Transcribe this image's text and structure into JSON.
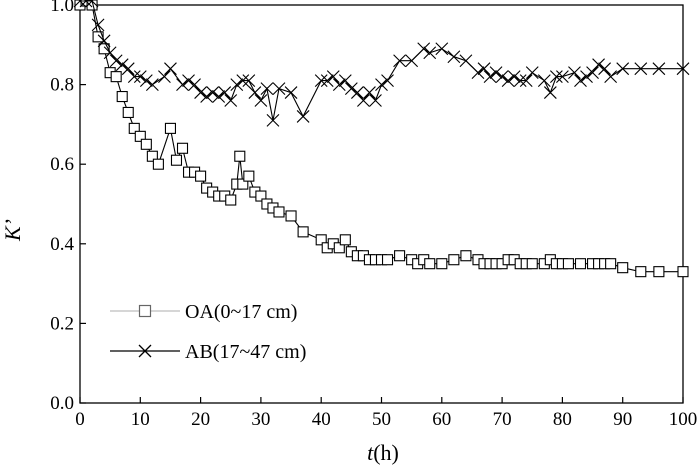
{
  "chart_data": {
    "type": "line",
    "xlabel": "t(h)",
    "ylabel": "K’",
    "xlim": [
      0,
      100
    ],
    "ylim": [
      0,
      1.0
    ],
    "xticks": [
      "0",
      "10",
      "20",
      "30",
      "40",
      "50",
      "60",
      "70",
      "80",
      "90",
      "100"
    ],
    "yticks": [
      "0.0",
      "0.2",
      "0.4",
      "0.6",
      "0.8",
      "1.0"
    ],
    "legend_position": "lower-left",
    "series": [
      {
        "name": "OA(0~17 cm)",
        "marker": "square",
        "color": "#000000",
        "legend_line_color": "#bdbdbd",
        "x": [
          0,
          1,
          2,
          3,
          4,
          5,
          6,
          7,
          8,
          9,
          10,
          11,
          12,
          13,
          15,
          16,
          17,
          18,
          19,
          20,
          21,
          22,
          23,
          24,
          25,
          26,
          26.5,
          27,
          28,
          29,
          30,
          31,
          32,
          33,
          35,
          37,
          40,
          41,
          42,
          43,
          44,
          45,
          46,
          47,
          48,
          49,
          50,
          51,
          53,
          55,
          56,
          57,
          58,
          60,
          62,
          64,
          66,
          67,
          68,
          69,
          70,
          71,
          72,
          73,
          74,
          75,
          77,
          78,
          79,
          80,
          81,
          83,
          85,
          86,
          87,
          88,
          90,
          93,
          96,
          100
        ],
        "y": [
          1.0,
          1.01,
          1.0,
          0.92,
          0.89,
          0.83,
          0.82,
          0.77,
          0.73,
          0.69,
          0.67,
          0.65,
          0.62,
          0.6,
          0.69,
          0.61,
          0.64,
          0.58,
          0.58,
          0.57,
          0.54,
          0.53,
          0.52,
          0.52,
          0.51,
          0.55,
          0.62,
          0.55,
          0.57,
          0.53,
          0.52,
          0.5,
          0.49,
          0.48,
          0.47,
          0.43,
          0.41,
          0.39,
          0.4,
          0.39,
          0.41,
          0.38,
          0.37,
          0.37,
          0.36,
          0.36,
          0.36,
          0.36,
          0.37,
          0.36,
          0.35,
          0.36,
          0.35,
          0.35,
          0.36,
          0.37,
          0.36,
          0.35,
          0.35,
          0.35,
          0.35,
          0.36,
          0.36,
          0.35,
          0.35,
          0.35,
          0.35,
          0.36,
          0.35,
          0.35,
          0.35,
          0.35,
          0.35,
          0.35,
          0.35,
          0.35,
          0.34,
          0.33,
          0.33,
          0.33
        ]
      },
      {
        "name": "AB(17~47 cm)",
        "marker": "x",
        "color": "#000000",
        "legend_line_color": "#000000",
        "x": [
          0,
          1,
          2,
          3,
          4,
          5,
          6,
          7,
          8,
          9,
          10,
          11,
          12,
          14,
          15,
          17,
          18,
          19,
          20,
          21,
          22,
          23,
          24,
          25,
          26,
          27,
          28,
          29,
          30,
          31,
          32,
          33,
          35,
          37,
          40,
          41,
          42,
          43,
          44,
          45,
          46,
          47,
          48,
          49,
          50,
          51,
          53,
          55,
          57,
          58,
          60,
          62,
          64,
          66,
          67,
          68,
          69,
          70,
          71,
          72,
          73,
          74,
          75,
          77,
          78,
          79,
          80,
          82,
          83,
          84,
          85,
          86,
          87,
          88,
          90,
          93,
          96,
          100
        ],
        "y": [
          1.01,
          1.01,
          1.01,
          0.95,
          0.91,
          0.88,
          0.86,
          0.85,
          0.84,
          0.82,
          0.82,
          0.81,
          0.8,
          0.82,
          0.84,
          0.8,
          0.81,
          0.8,
          0.78,
          0.77,
          0.78,
          0.77,
          0.78,
          0.76,
          0.8,
          0.81,
          0.81,
          0.78,
          0.76,
          0.79,
          0.71,
          0.79,
          0.78,
          0.72,
          0.81,
          0.81,
          0.82,
          0.8,
          0.81,
          0.79,
          0.78,
          0.76,
          0.78,
          0.76,
          0.8,
          0.81,
          0.86,
          0.86,
          0.89,
          0.88,
          0.89,
          0.87,
          0.86,
          0.83,
          0.84,
          0.82,
          0.83,
          0.82,
          0.81,
          0.82,
          0.81,
          0.81,
          0.83,
          0.81,
          0.78,
          0.82,
          0.82,
          0.83,
          0.81,
          0.82,
          0.83,
          0.85,
          0.84,
          0.82,
          0.84,
          0.84,
          0.84,
          0.84
        ]
      }
    ]
  }
}
